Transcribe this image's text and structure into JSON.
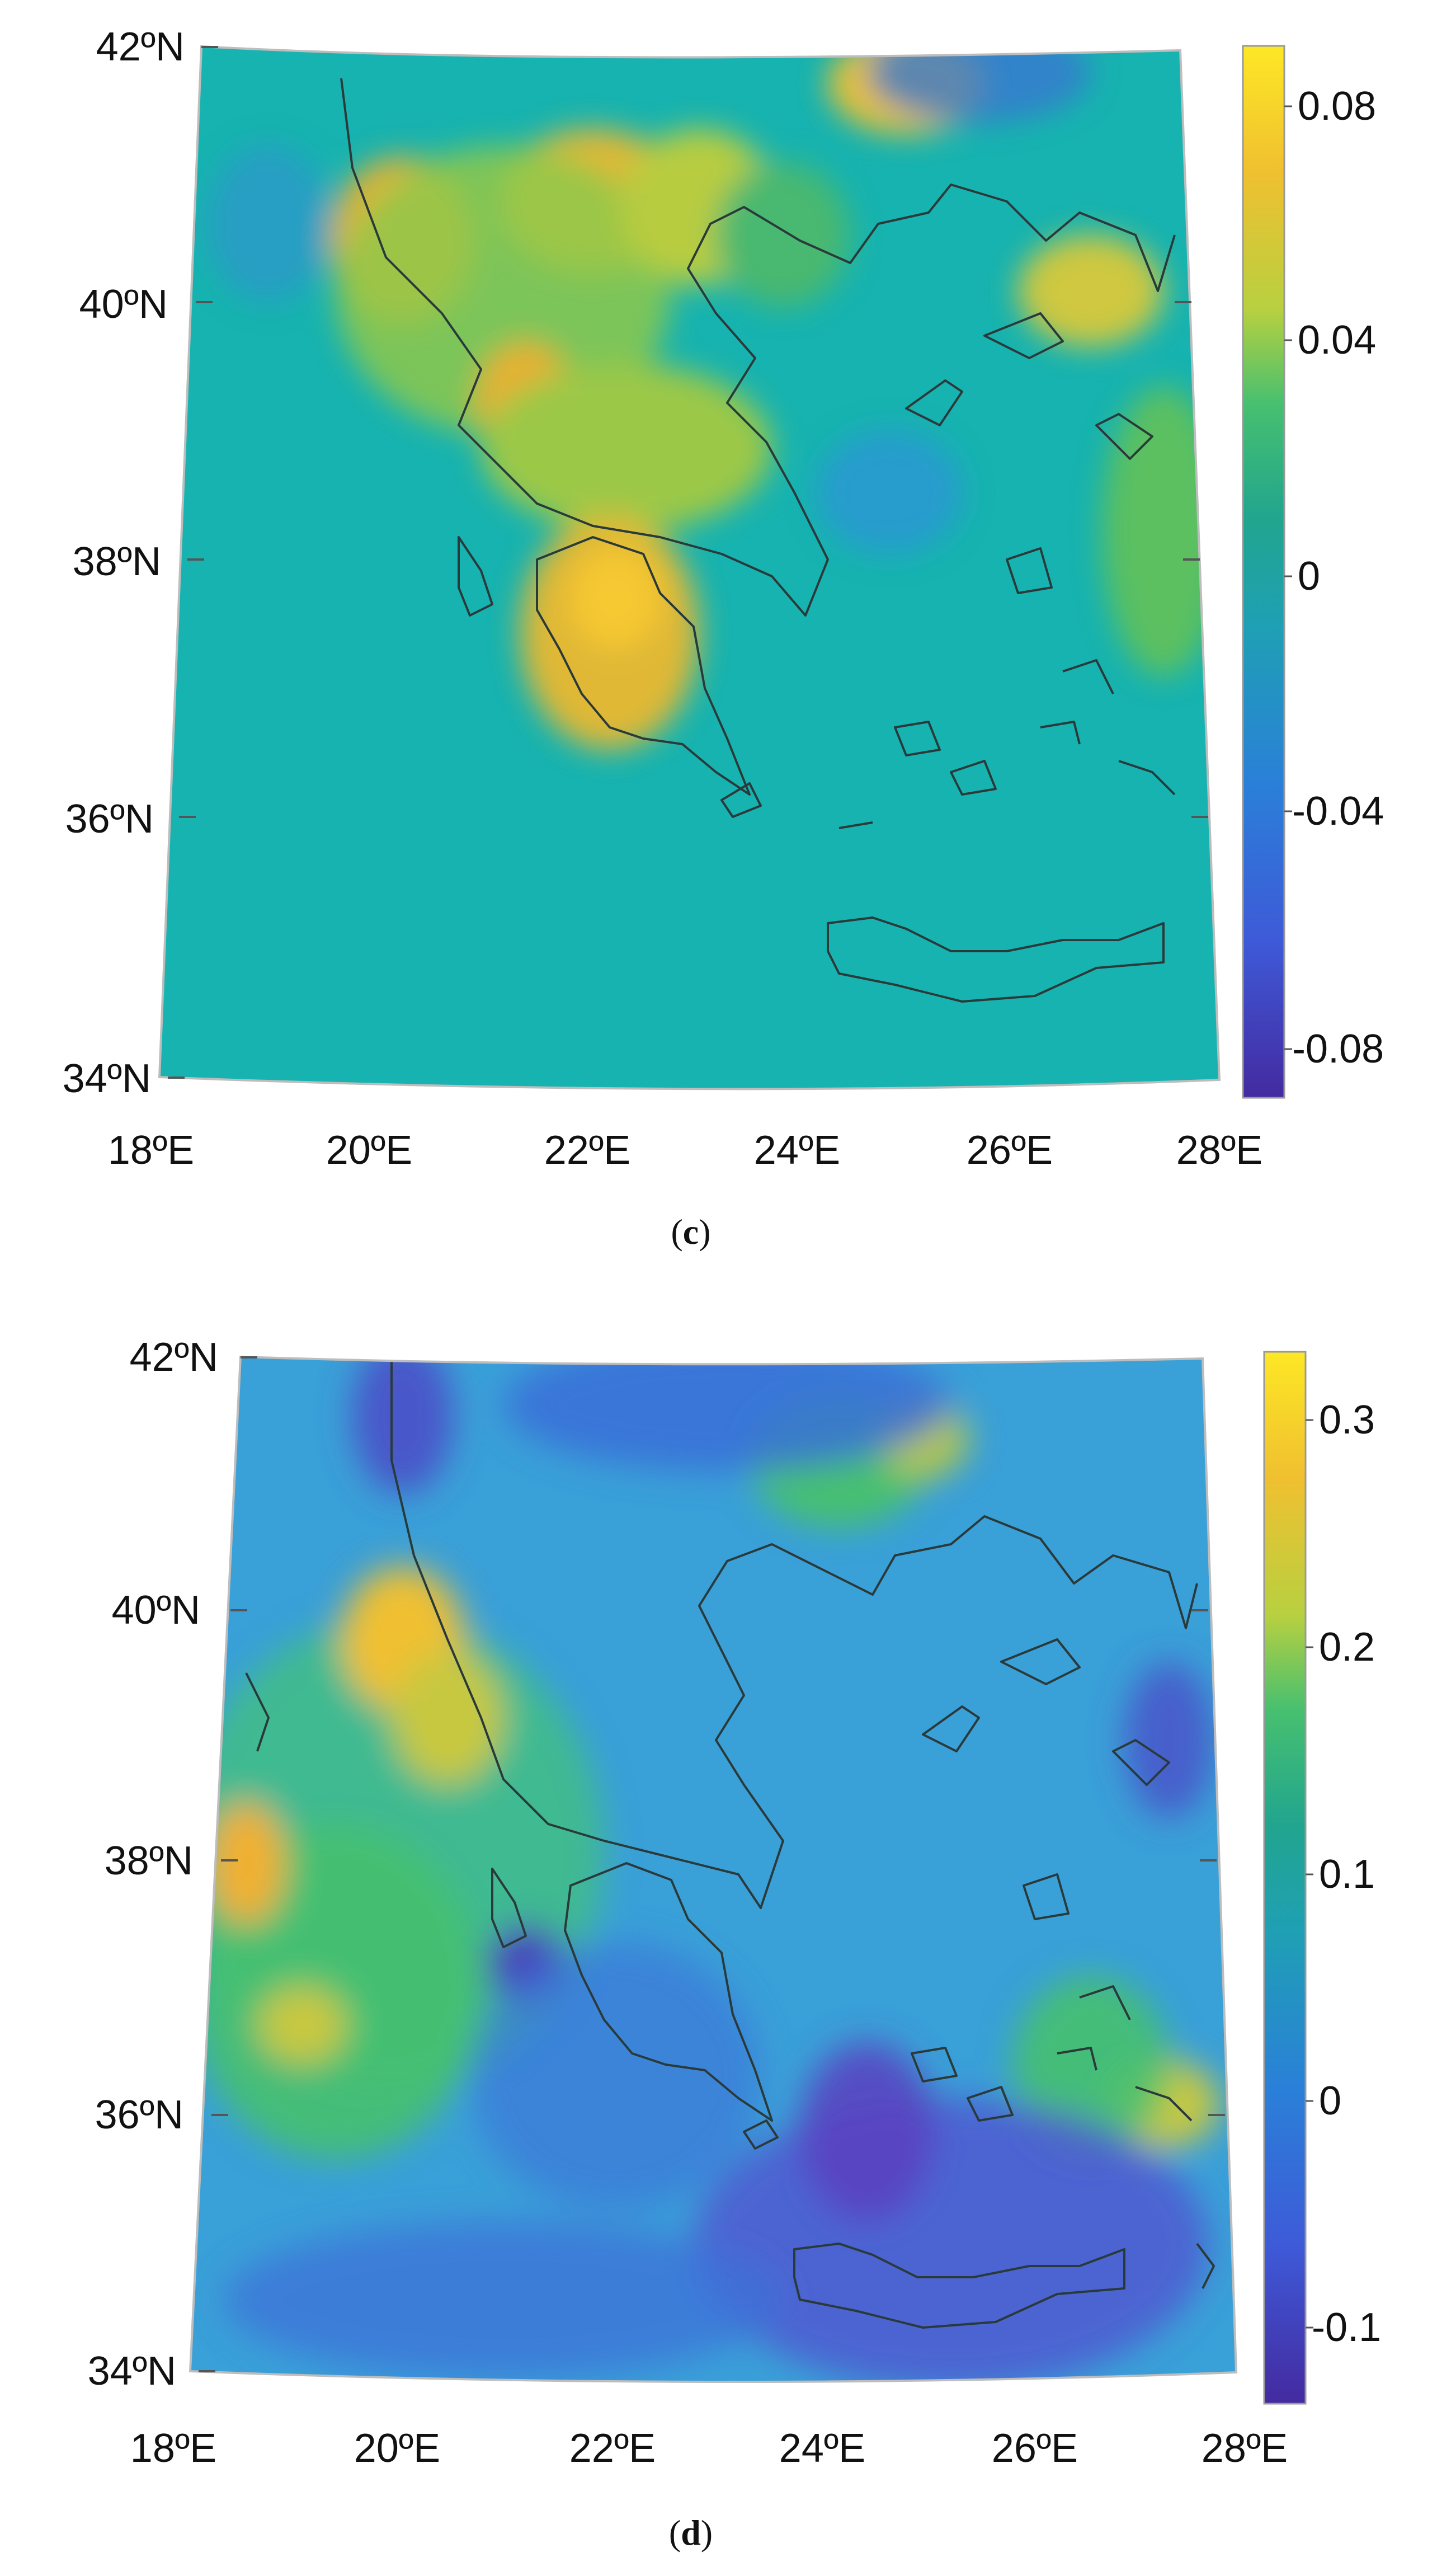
{
  "panels": [
    {
      "id": "c",
      "caption_open": "(",
      "caption_letter": "c",
      "caption_close": ")",
      "lat_labels": [
        "42ºN",
        "40ºN",
        "38ºN",
        "36ºN",
        "34ºN"
      ],
      "lon_labels": [
        "18ºE",
        "20ºE",
        "22ºE",
        "24ºE",
        "26ºE",
        "28ºE"
      ],
      "colorbar": {
        "ticks": [
          "0.08",
          "0.04",
          "0",
          "-0.04",
          "-0.08"
        ],
        "colors": [
          "#fde725",
          "#f0c030",
          "#b8d040",
          "#47c06f",
          "#21a58e",
          "#1fa0b4",
          "#2a80d8",
          "#3e5ad8",
          "#442aa0"
        ]
      },
      "background": "#17b3b0"
    },
    {
      "id": "d",
      "caption_open": "(",
      "caption_letter": "d",
      "caption_close": ")",
      "lat_labels": [
        "42ºN",
        "40ºN",
        "38ºN",
        "36ºN",
        "34ºN"
      ],
      "lon_labels": [
        "18ºE",
        "20ºE",
        "22ºE",
        "24ºE",
        "26ºE",
        "28ºE"
      ],
      "colorbar": {
        "ticks": [
          "0.3",
          "0.2",
          "0.1",
          "0",
          "-0.1"
        ],
        "colors": [
          "#fde725",
          "#f0c030",
          "#b8d040",
          "#47c06f",
          "#21a58e",
          "#1fa0b4",
          "#2a80d8",
          "#3e5ad8",
          "#442aa0"
        ]
      },
      "background": "#3aa0d8"
    }
  ]
}
